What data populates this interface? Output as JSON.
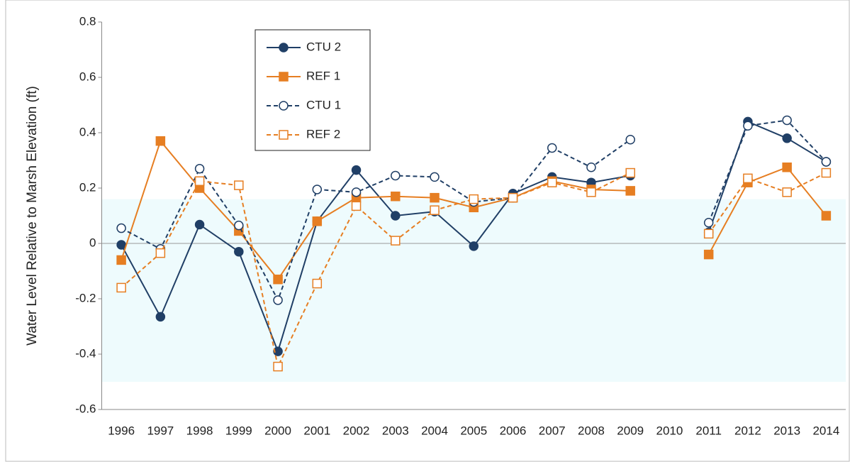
{
  "chart_data": {
    "type": "line",
    "y_label": "Water Level Relative to Marsh Elevation (ft)",
    "categories": [
      "1996",
      "1997",
      "1998",
      "1999",
      "2000",
      "2001",
      "2002",
      "2003",
      "2004",
      "2005",
      "2006",
      "2007",
      "2008",
      "2009",
      "2010",
      "2011",
      "2012",
      "2013",
      "2014"
    ],
    "series": [
      {
        "name": "CTU 2",
        "color": "#203f66",
        "marker": "circle",
        "filled": true,
        "dashed": false,
        "values": [
          -0.005,
          -0.265,
          0.068,
          -0.03,
          -0.39,
          0.08,
          0.265,
          0.1,
          0.115,
          -0.01,
          0.18,
          0.24,
          0.22,
          0.245,
          null,
          0.04,
          0.44,
          0.38,
          0.295
        ]
      },
      {
        "name": "REF 1",
        "color": "#e67e22",
        "marker": "square",
        "filled": true,
        "dashed": false,
        "values": [
          -0.06,
          0.37,
          0.2,
          0.045,
          -0.13,
          0.08,
          0.165,
          0.17,
          0.165,
          0.13,
          0.165,
          0.225,
          0.195,
          0.19,
          null,
          -0.04,
          0.22,
          0.275,
          0.1
        ]
      },
      {
        "name": "CTU 1",
        "color": "#203f66",
        "marker": "circle",
        "filled": false,
        "dashed": true,
        "values": [
          0.055,
          -0.02,
          0.27,
          0.065,
          -0.205,
          0.195,
          0.185,
          0.245,
          0.24,
          0.15,
          0.165,
          0.345,
          0.275,
          0.375,
          null,
          0.075,
          0.425,
          0.445,
          0.295
        ]
      },
      {
        "name": "REF 2",
        "color": "#e67e22",
        "marker": "square",
        "filled": false,
        "dashed": true,
        "values": [
          -0.16,
          -0.035,
          0.225,
          0.21,
          -0.445,
          -0.145,
          0.135,
          0.01,
          0.12,
          0.16,
          0.165,
          0.22,
          0.185,
          0.255,
          null,
          0.035,
          0.235,
          0.185,
          0.255
        ]
      }
    ],
    "shaded_range": [
      -0.5,
      0.16
    ],
    "shaded_color": "#eefbfd",
    "ylim": [
      -0.6,
      0.8
    ],
    "yticks": [
      -0.6,
      -0.4,
      -0.2,
      0,
      0.2,
      0.4,
      0.6,
      0.8
    ],
    "zero_line": true,
    "legend": "upper left"
  }
}
